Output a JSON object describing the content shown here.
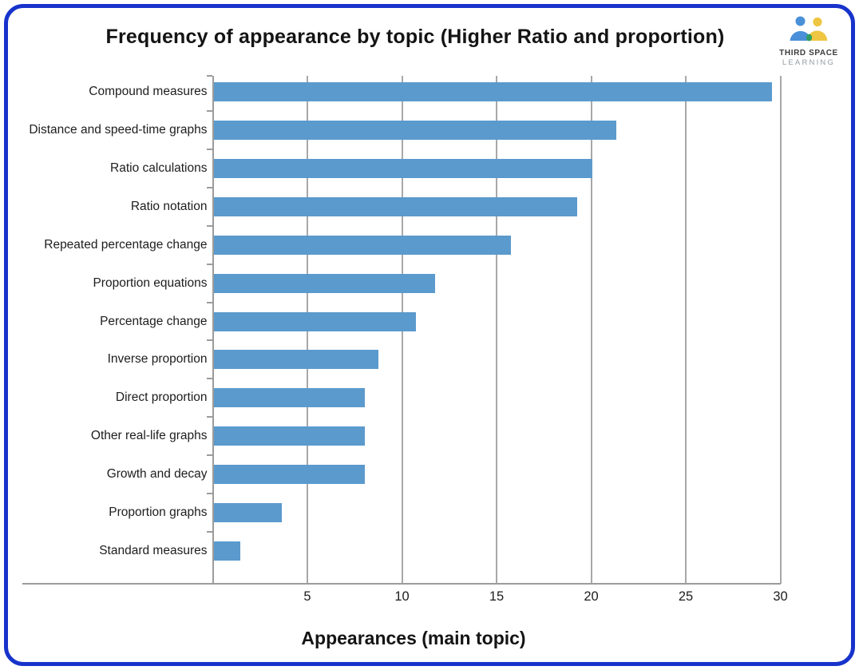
{
  "title": "Frequency of appearance by topic (Higher Ratio and proportion)",
  "logo": {
    "line1": "THIRD SPACE",
    "line2": "LEARNING",
    "blue": "#4a90d9",
    "yellow": "#eec643",
    "green": "#2f9e63"
  },
  "colors": {
    "frame_border": "#1733cb",
    "bar": "#5b9acd",
    "gridline": "#a8a8a8",
    "axis": "#9c9c9c"
  },
  "chart_data": {
    "type": "bar",
    "orientation": "horizontal",
    "title": "Frequency of appearance by topic (Higher Ratio and proportion)",
    "xlabel": "Appearances (main topic)",
    "ylabel": "",
    "xlim": [
      0,
      30
    ],
    "xticks": [
      5,
      10,
      15,
      20,
      25,
      30
    ],
    "grid": true,
    "legend": false,
    "categories": [
      "Compound measures",
      "Distance and speed-time graphs",
      "Ratio calculations",
      "Ratio notation",
      "Repeated percentage change",
      "Proportion equations",
      "Percentage change",
      "Inverse proportion",
      "Direct proportion",
      "Other real-life graphs",
      "Growth and decay",
      "Proportion graphs",
      "Standard measures"
    ],
    "values": [
      29.5,
      21.3,
      20,
      19.2,
      15.7,
      11.7,
      10.7,
      8.7,
      8,
      8,
      8,
      3.6,
      1.4
    ]
  }
}
